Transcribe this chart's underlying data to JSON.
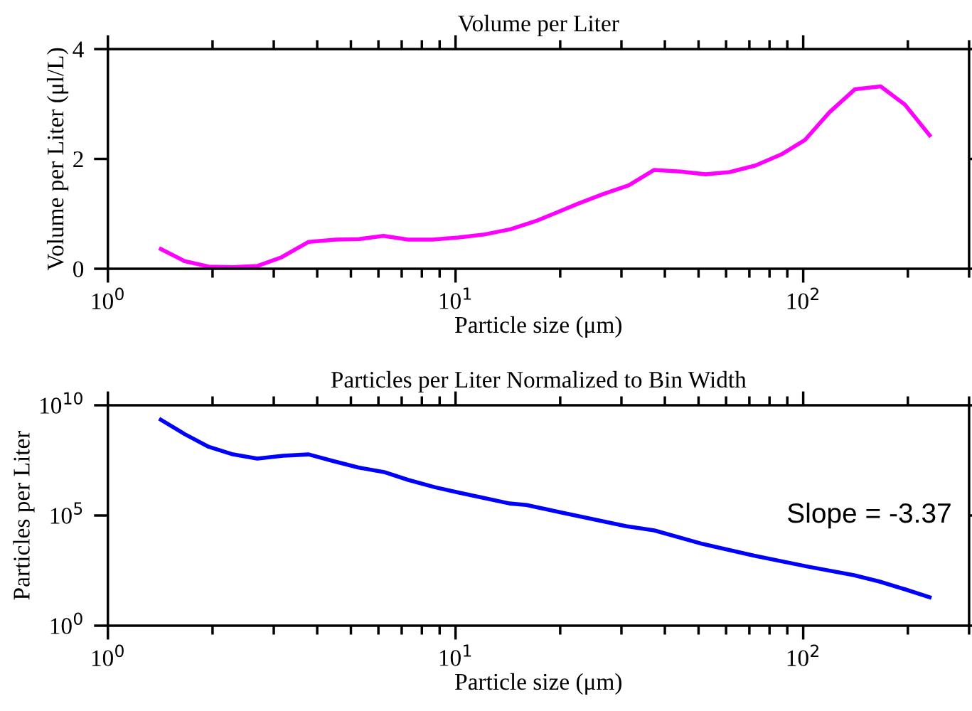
{
  "chart_data": [
    {
      "type": "line",
      "title": "Volume per Liter",
      "xlabel": "Particle size (μm)",
      "ylabel": "Volume per Liter (μl/L)",
      "log": "x",
      "xlim": [
        1,
        300
      ],
      "xticks": [
        {
          "value": 1,
          "label": "10$^{0}$"
        },
        {
          "value": 10,
          "label": "10$^{1}$"
        },
        {
          "value": 100,
          "label": "10$^{2}$"
        }
      ],
      "ylim": [
        0,
        4
      ],
      "yticks": [
        0,
        2,
        4
      ],
      "series": [
        {
          "color": "#ff00ff",
          "x": [
            1.42,
            1.66,
            1.95,
            2.29,
            2.69,
            3.16,
            3.78,
            4.52,
            5.28,
            6.2,
            7.31,
            8.58,
            10.2,
            12.0,
            14.4,
            17.2,
            19.3,
            22.6,
            26.6,
            31.5,
            37.3,
            44.2,
            52.4,
            61.5,
            72.9,
            86.4,
            101,
            119,
            141,
            167,
            196,
            231
          ],
          "values": [
            0.36,
            0.14,
            0.04,
            0.03,
            0.05,
            0.21,
            0.49,
            0.53,
            0.54,
            0.6,
            0.53,
            0.53,
            0.57,
            0.62,
            0.72,
            0.88,
            1.01,
            1.19,
            1.36,
            1.52,
            1.8,
            1.77,
            1.72,
            1.76,
            1.88,
            2.08,
            2.34,
            2.85,
            3.27,
            3.32,
            2.99,
            2.43
          ]
        }
      ]
    },
    {
      "type": "line",
      "title": "Particles per Liter Normalized to Bin Width",
      "xlabel": "Particle size (μm)",
      "ylabel": "Particles per Liter",
      "log": "xy",
      "xlim": [
        1,
        300
      ],
      "xticks": [
        {
          "value": 1,
          "label": "10$^{0}$"
        },
        {
          "value": 10,
          "label": "10$^{1}$"
        },
        {
          "value": 100,
          "label": "10$^{2}$"
        }
      ],
      "ylim": [
        1,
        10000000000.0
      ],
      "yticks": [
        {
          "value": 1,
          "label": "10$^{0}$"
        },
        {
          "value": 100000,
          "label": "10$^{5}$"
        },
        {
          "value": 10000000000.0,
          "label": "10$^{10}$"
        }
      ],
      "annotations": [
        "Slope = -3.37"
      ],
      "series": [
        {
          "color": "#0000ff",
          "x": [
            1.42,
            1.66,
            1.95,
            2.29,
            2.69,
            3.19,
            3.78,
            4.43,
            5.25,
            6.23,
            7.31,
            8.74,
            10.2,
            11.9,
            14.3,
            16.0,
            20.0,
            30.9,
            37.3,
            51.4,
            72.2,
            103,
            140,
            166,
            196,
            231
          ],
          "values": [
            2200000000.0,
            500000000.0,
            130000000.0,
            59000000.0,
            38000000.0,
            51000000.0,
            59000000.0,
            30000000.0,
            15000000.0,
            9300000.0,
            4100000.0,
            1900000.0,
            1100000.0,
            650000.0,
            350000.0,
            300000.0,
            140000.0,
            33000.0,
            21000.0,
            5100.0,
            1500.0,
            480,
            195,
            100,
            45,
            19.5
          ]
        }
      ]
    }
  ]
}
